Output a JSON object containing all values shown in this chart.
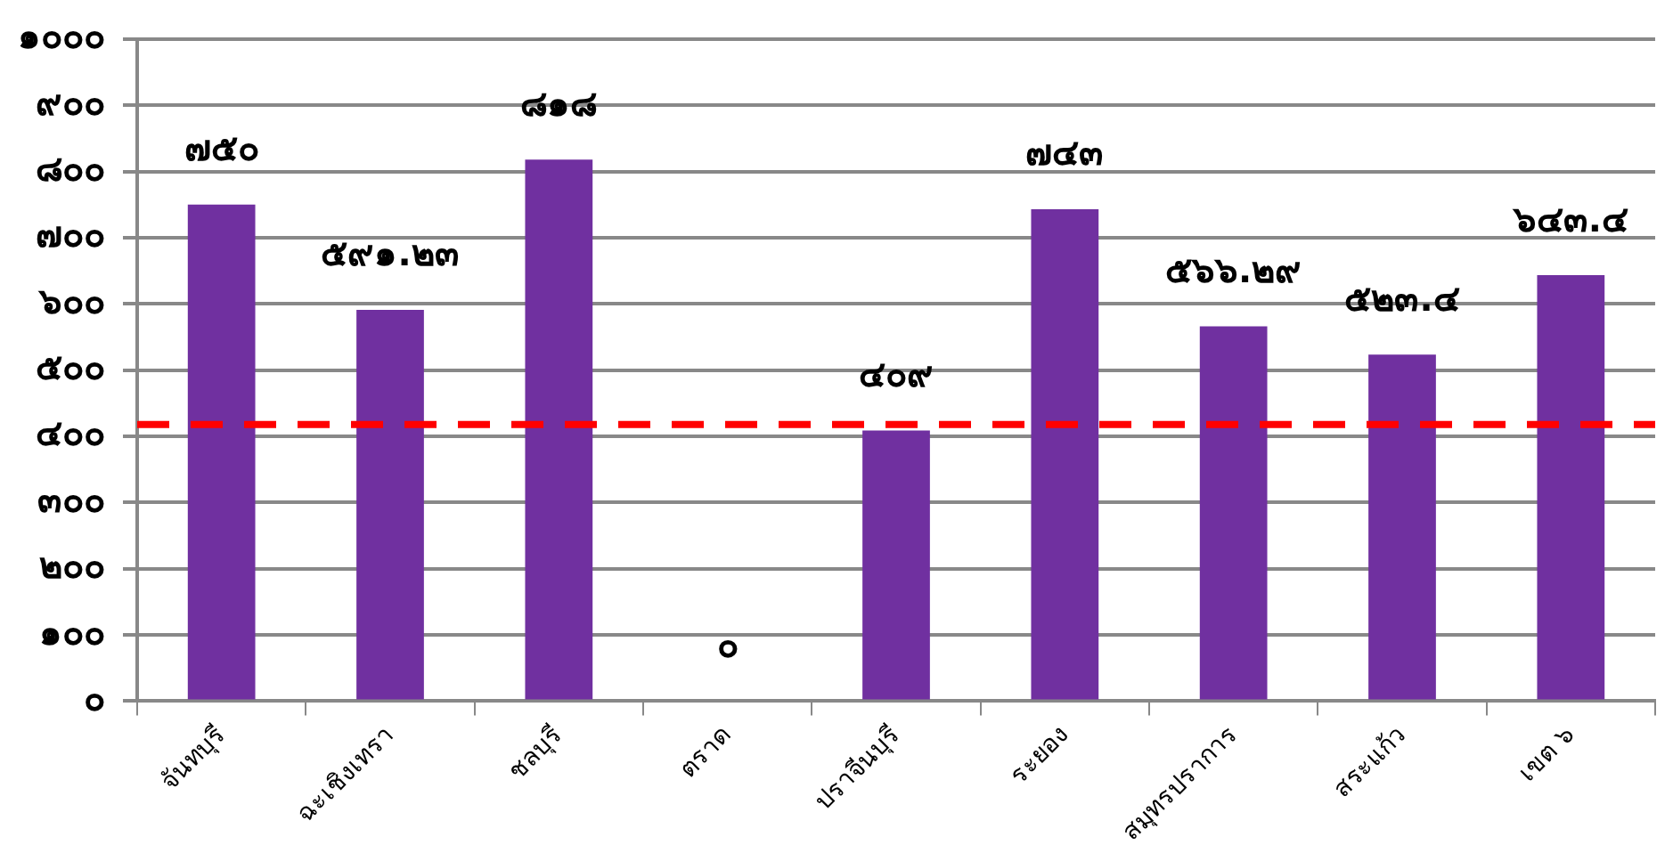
{
  "chart_data": {
    "type": "bar",
    "categories": [
      "จันทบุรี",
      "ฉะเชิงเทรา",
      "ชลบุรี",
      "ตราด",
      "ปราจีนบุรี",
      "ระยอง",
      "สมุทรปราการ",
      "สระแก้ว",
      "เขต ๖"
    ],
    "values": [
      750,
      591.23,
      818,
      0,
      409,
      743,
      566.29,
      523.4,
      643.4
    ],
    "value_labels": [
      "๗๕๐",
      "๕๙๑.๒๓",
      "๘๑๘",
      "๐",
      "๔๐๙",
      "๗๔๓",
      "๕๖๖.๒๙",
      "๕๒๓.๔",
      "๖๔๓.๔"
    ],
    "color": "#7030a0",
    "ylim": [
      0,
      1000
    ],
    "yticks": [
      {
        "value": 0,
        "label": "๐"
      },
      {
        "value": 100,
        "label": "๑๐๐"
      },
      {
        "value": 200,
        "label": "๒๐๐"
      },
      {
        "value": 300,
        "label": "๓๐๐"
      },
      {
        "value": 400,
        "label": "๔๐๐"
      },
      {
        "value": 500,
        "label": "๕๐๐"
      },
      {
        "value": 600,
        "label": "๖๐๐"
      },
      {
        "value": 700,
        "label": "๗๐๐"
      },
      {
        "value": 800,
        "label": "๘๐๐"
      },
      {
        "value": 900,
        "label": "๙๐๐"
      },
      {
        "value": 1000,
        "label": "๑๐๐๐"
      }
    ],
    "grid": "y",
    "ref_lines": [
      {
        "axis": "y",
        "value": 418,
        "color": "#ff0000",
        "line_style": "dashed"
      }
    ]
  }
}
